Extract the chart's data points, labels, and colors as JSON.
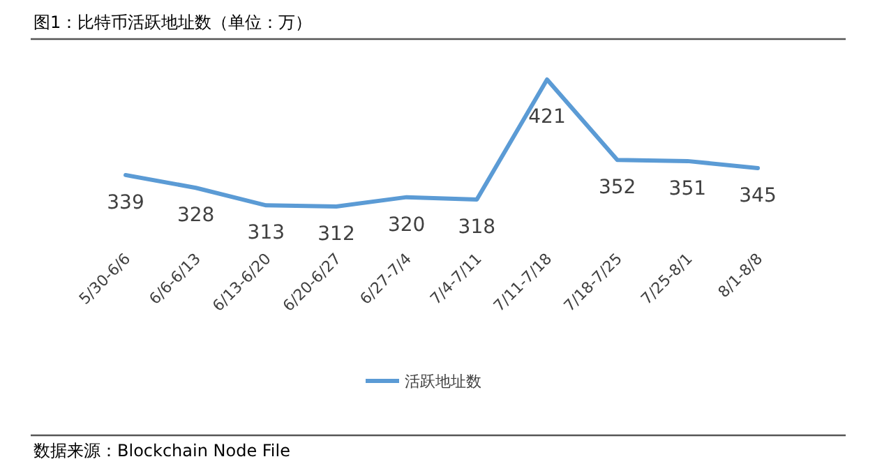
{
  "chart_data": {
    "type": "line",
    "title": "图1：比特币活跃地址数（单位：万）",
    "categories": [
      "5/30-6/6",
      "6/6-6/13",
      "6/13-6/20",
      "6/20-6/27",
      "6/27-7/4",
      "7/4-7/11",
      "7/11-7/18",
      "7/18-7/25",
      "7/25-8/1",
      "8/1-8/8"
    ],
    "series": [
      {
        "name": "活跃地址数",
        "color": "#5b9bd5",
        "values": [
          339,
          328,
          313,
          312,
          320,
          318,
          421,
          352,
          351,
          345
        ]
      }
    ],
    "data_labels": true,
    "legend": "bottom",
    "grid": false,
    "marker": "none",
    "line_style": "solid",
    "relative": false,
    "annotations": [
      "数据来源：Blockchain Node File"
    ]
  }
}
